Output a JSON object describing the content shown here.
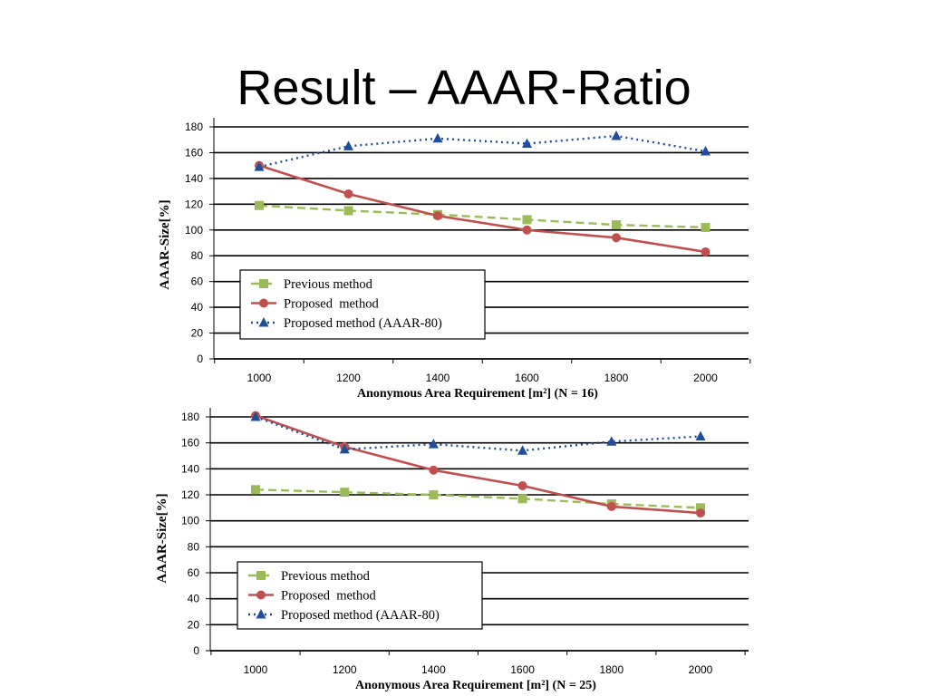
{
  "title": "Result – AAAR-Ratio",
  "chart_data": [
    {
      "type": "line",
      "categories": [
        "1000",
        "1200",
        "1400",
        "1600",
        "1800",
        "2000"
      ],
      "ylim": [
        0,
        180
      ],
      "yticks": [
        "0",
        "20",
        "40",
        "60",
        "80",
        "100",
        "120",
        "140",
        "160",
        "180"
      ],
      "ylabel": "AAAR-Size[%]",
      "xlabel": "Anonymous Area Requirement [m²] (N = 16)",
      "grid": true,
      "legend_position": "bottom-left",
      "series": [
        {
          "name": "Previous method",
          "color": "#9bbb59",
          "dash": "dashed",
          "marker": "square",
          "values": [
            119,
            115,
            112,
            108,
            104,
            102
          ]
        },
        {
          "name": "Proposed  method",
          "color": "#c0504d",
          "dash": "solid",
          "marker": "circle",
          "values": [
            150,
            128,
            111,
            100,
            94,
            83
          ]
        },
        {
          "name": "Proposed method (AAAR-80)",
          "color": "#1f4e9c",
          "dash": "dotted",
          "marker": "triangle",
          "values": [
            149,
            165,
            171,
            167,
            173,
            161
          ]
        }
      ]
    },
    {
      "type": "line",
      "categories": [
        "1000",
        "1200",
        "1400",
        "1600",
        "1800",
        "2000"
      ],
      "ylim": [
        0,
        180
      ],
      "yticks": [
        "0",
        "20",
        "40",
        "60",
        "80",
        "100",
        "120",
        "140",
        "160",
        "180"
      ],
      "ylabel": "AAAR-Size[%]",
      "xlabel": "Anonymous Area Requirement [m²] (N = 25)",
      "grid": true,
      "legend_position": "bottom-left",
      "series": [
        {
          "name": "Previous method",
          "color": "#9bbb59",
          "dash": "dashed",
          "marker": "square",
          "values": [
            124,
            122,
            120,
            117,
            113,
            110
          ]
        },
        {
          "name": "Proposed  method",
          "color": "#c0504d",
          "dash": "solid",
          "marker": "circle",
          "values": [
            181,
            157,
            139,
            127,
            111,
            106
          ]
        },
        {
          "name": "Proposed method (AAAR-80)",
          "color": "#1f4e9c",
          "dash": "dotted",
          "marker": "triangle",
          "values": [
            180,
            155,
            159,
            154,
            161,
            165
          ]
        }
      ]
    }
  ]
}
